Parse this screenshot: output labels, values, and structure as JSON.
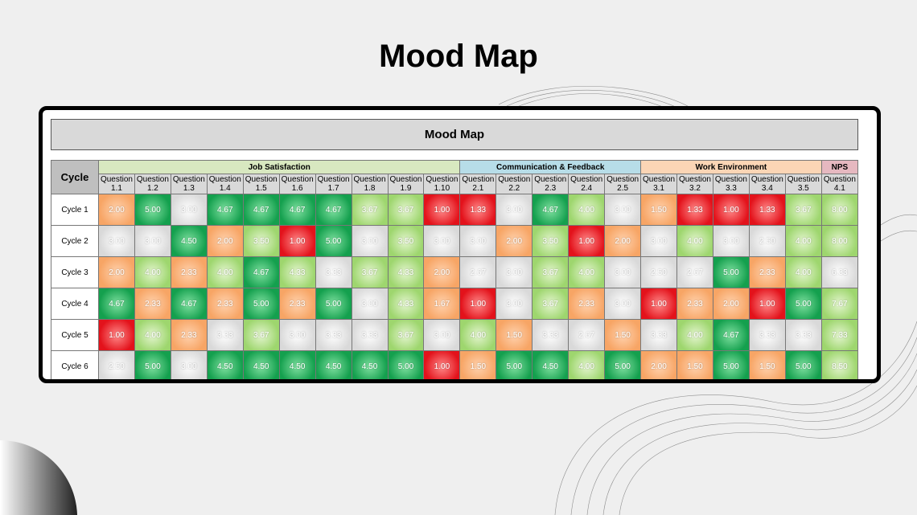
{
  "title": "Mood Map",
  "sheet_title": "Mood Map",
  "table": {
    "corner": "Cycle",
    "groups": [
      {
        "name": "Job Satisfaction",
        "color": "#d8e8c0",
        "columns": [
          "Question 1.1",
          "Question 1.2",
          "Question 1.3",
          "Question 1.4",
          "Question 1.5",
          "Question 1.6",
          "Question 1.7",
          "Question 1.8",
          "Question 1.9",
          "Question 1.10"
        ]
      },
      {
        "name": "Communication & Feedback",
        "color": "#b7dde8",
        "columns": [
          "Question 2.1",
          "Question 2.2",
          "Question 2.3",
          "Question 2.4",
          "Question 2.5"
        ]
      },
      {
        "name": "Work Environment",
        "color": "#fbd5b5",
        "columns": [
          "Question 3.1",
          "Question 3.2",
          "Question 3.3",
          "Question 3.4",
          "Question 3.5"
        ]
      },
      {
        "name": "NPS",
        "color": "#e6b8c0",
        "columns": [
          "Question 4.1"
        ]
      }
    ],
    "rows": [
      {
        "label": "Cycle 1",
        "values": [
          "2.00",
          "5.00",
          "3.00",
          "4.67",
          "4.67",
          "4.67",
          "4.67",
          "3.67",
          "3.67",
          "1.00",
          "1.33",
          "3.00",
          "4.67",
          "4.00",
          "3.00",
          "1.50",
          "1.33",
          "1.00",
          "1.33",
          "3.67",
          "8.00"
        ]
      },
      {
        "label": "Cycle 2",
        "values": [
          "3.00",
          "3.00",
          "4.50",
          "2.00",
          "3.50",
          "1.00",
          "5.00",
          "3.00",
          "3.50",
          "3.00",
          "3.00",
          "2.00",
          "3.50",
          "1.00",
          "2.00",
          "3.00",
          "4.00",
          "3.00",
          "2.50",
          "4.00",
          "8.00"
        ]
      },
      {
        "label": "Cycle 3",
        "values": [
          "2.00",
          "4.00",
          "2.33",
          "4.00",
          "4.67",
          "4.33",
          "3.33",
          "3.67",
          "4.33",
          "2.00",
          "2.67",
          "3.00",
          "3.67",
          "4.00",
          "3.00",
          "2.50",
          "2.67",
          "5.00",
          "2.33",
          "4.00",
          "6.33"
        ]
      },
      {
        "label": "Cycle 4",
        "values": [
          "4.67",
          "2.33",
          "4.67",
          "2.33",
          "5.00",
          "2.33",
          "5.00",
          "3.00",
          "4.33",
          "1.67",
          "1.00",
          "3.00",
          "3.67",
          "2.33",
          "3.00",
          "1.00",
          "2.33",
          "2.00",
          "1.00",
          "5.00",
          "7.67"
        ]
      },
      {
        "label": "Cycle 5",
        "values": [
          "1.00",
          "4.00",
          "2.33",
          "3.33",
          "3.67",
          "3.00",
          "3.33",
          "3.33",
          "3.67",
          "3.00",
          "4.00",
          "1.50",
          "3.33",
          "2.67",
          "1.50",
          "3.33",
          "4.00",
          "4.67",
          "3.33",
          "3.33",
          "7.33"
        ]
      },
      {
        "label": "Cycle 6",
        "values": [
          "2.50",
          "5.00",
          "3.00",
          "4.50",
          "4.50",
          "4.50",
          "4.50",
          "4.50",
          "5.00",
          "1.00",
          "1.50",
          "5.00",
          "4.50",
          "4.00",
          "5.00",
          "2.00",
          "1.50",
          "5.00",
          "1.50",
          "5.00",
          "8.50"
        ]
      }
    ]
  }
}
